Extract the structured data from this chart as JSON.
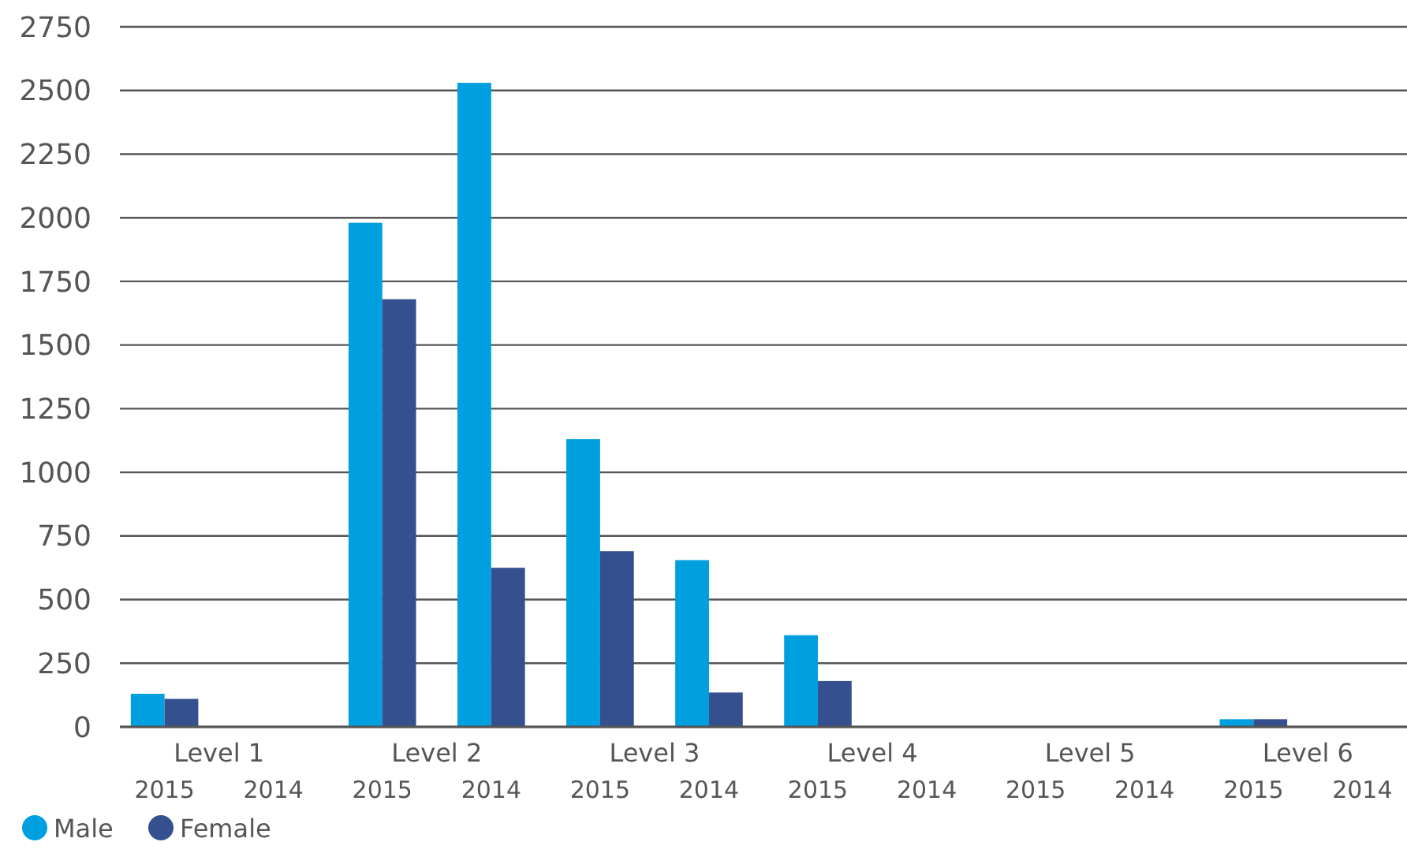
{
  "chart_data": {
    "type": "bar",
    "categories": [
      "2015",
      "2014",
      "2015",
      "2014",
      "2015",
      "2014",
      "2015",
      "2014",
      "2015",
      "2014",
      "2015",
      "2014"
    ],
    "annotations": [
      "Level 1",
      "Level 2",
      "Level 3",
      "Level 4",
      "Level 5",
      "Level 6"
    ],
    "series": [
      {
        "name": "Male",
        "color": "#009fe0",
        "values": [
          130,
          0,
          1980,
          2530,
          1130,
          655,
          360,
          0,
          0,
          0,
          30,
          0
        ]
      },
      {
        "name": "Female",
        "color": "#34508e",
        "values": [
          110,
          0,
          1680,
          625,
          690,
          135,
          180,
          0,
          0,
          0,
          30,
          0
        ]
      }
    ],
    "ylim": [
      0,
      2750
    ],
    "yticks": [
      0,
      250,
      500,
      750,
      1000,
      1250,
      1500,
      1750,
      2000,
      2250,
      2500,
      2750
    ],
    "grid": "y",
    "legend": "bottom left"
  }
}
